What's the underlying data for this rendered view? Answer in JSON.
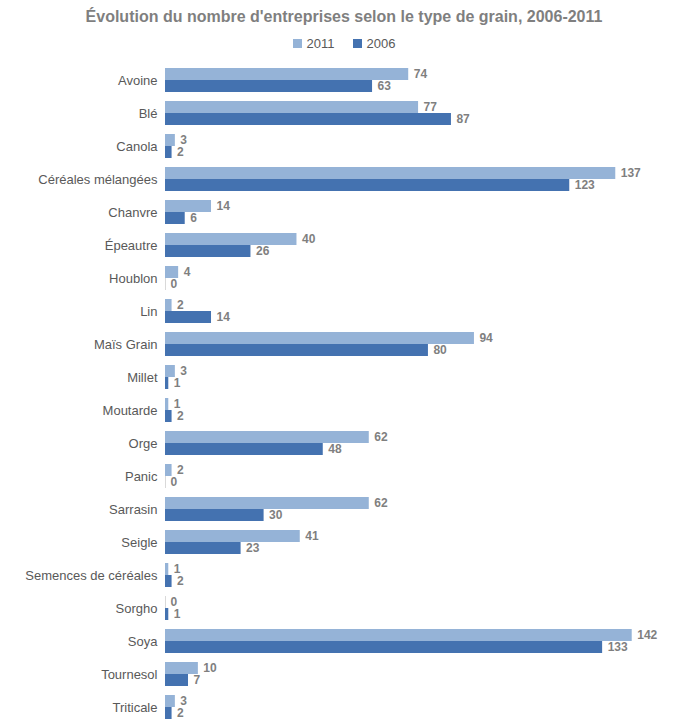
{
  "chart_data": {
    "type": "bar",
    "orientation": "horizontal",
    "title": "Évolution du nombre d'entreprises selon le type de grain, 2006-2011",
    "categories": [
      "Avoine",
      "Blé",
      "Canola",
      "Céréales mélangées",
      "Chanvre",
      "Épeautre",
      "Houblon",
      "Lin",
      "Maïs Grain",
      "Millet",
      "Moutarde",
      "Orge",
      "Panic",
      "Sarrasin",
      "Seigle",
      "Semences de céréales",
      "Sorgho",
      "Soya",
      "Tournesol",
      "Triticale"
    ],
    "series": [
      {
        "name": "2011",
        "color": "#95b3d7",
        "values": [
          74,
          77,
          3,
          137,
          14,
          40,
          4,
          2,
          94,
          3,
          1,
          62,
          2,
          62,
          41,
          1,
          0,
          142,
          10,
          3
        ]
      },
      {
        "name": "2006",
        "color": "#4472b0",
        "values": [
          63,
          87,
          2,
          123,
          6,
          26,
          0,
          14,
          80,
          1,
          2,
          48,
          0,
          30,
          23,
          2,
          1,
          133,
          7,
          2
        ]
      }
    ],
    "xlim": [
      0,
      150
    ],
    "data_labels": true,
    "legend": "top",
    "tick_labels": "y",
    "grid": false
  }
}
